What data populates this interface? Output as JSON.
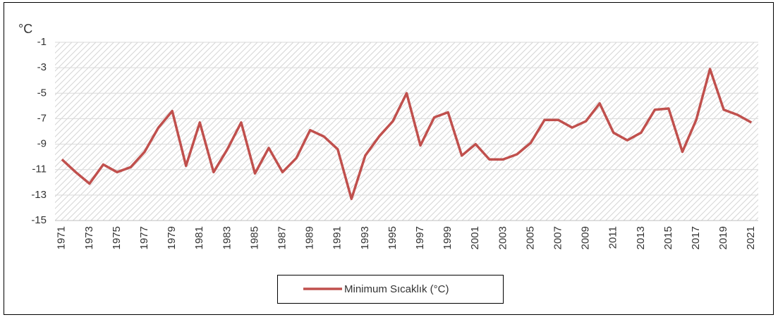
{
  "chart_data": {
    "type": "line",
    "y_label": "°C",
    "categories": [
      "1971",
      null,
      "1973",
      null,
      "1975",
      null,
      "1977",
      null,
      "1979",
      null,
      "1981",
      null,
      "1983",
      null,
      "1985",
      null,
      "1987",
      null,
      "1989",
      null,
      "1991",
      null,
      "1993",
      null,
      "1995",
      null,
      "1997",
      null,
      "1999",
      null,
      "2001",
      null,
      "2003",
      null,
      "2005",
      null,
      "2007",
      null,
      "2009",
      null,
      "2011",
      null,
      "2013",
      null,
      "2015",
      null,
      "2017",
      null,
      "2019",
      null,
      "2021"
    ],
    "series": [
      {
        "name": "Minimum Sıcaklık (°C)",
        "color": "#c0504d",
        "values": [
          -10.2,
          -11.2,
          -12.1,
          -10.6,
          -11.2,
          -10.8,
          -9.6,
          -7.7,
          -6.4,
          -10.7,
          -7.3,
          -11.2,
          -9.4,
          -7.3,
          -11.3,
          -9.3,
          -11.2,
          -10.1,
          -7.9,
          -8.4,
          -9.4,
          -13.3,
          -9.9,
          -8.4,
          -7.2,
          -5.0,
          -9.1,
          -6.9,
          -6.5,
          -9.9,
          -9.0,
          -10.2,
          -10.2,
          -9.8,
          -8.9,
          -7.1,
          -7.1,
          -7.7,
          -7.2,
          -5.8,
          -8.1,
          -8.7,
          -8.1,
          -6.3,
          -6.2,
          -9.6,
          -7.1,
          -3.1,
          -6.3,
          -6.7,
          -7.3
        ]
      }
    ],
    "ylim": [
      -15,
      -1
    ],
    "yticks": [
      -15,
      -13,
      -11,
      -9,
      -7,
      -5,
      -3,
      -1
    ],
    "grid": true,
    "legend": "bottom"
  }
}
